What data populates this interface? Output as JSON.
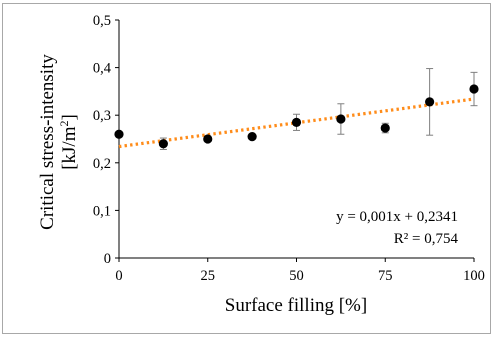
{
  "chart_data": {
    "type": "scatter",
    "xlabel": "Surface filling [%]",
    "ylabel_line1": "Critical stress-intensity",
    "ylabel_line2_prefix": "[kJ/m",
    "ylabel_line2_sup": "2",
    "ylabel_line2_suffix": "]",
    "xlim": [
      0,
      100
    ],
    "ylim": [
      0,
      0.5
    ],
    "x_ticks": [
      0,
      25,
      50,
      75,
      100
    ],
    "x_tick_labels": [
      "0",
      "25",
      "50",
      "75",
      "100"
    ],
    "y_ticks": [
      0,
      0.1,
      0.2,
      0.3,
      0.4,
      0.5
    ],
    "y_tick_labels": [
      "0",
      "0,1",
      "0,2",
      "0,3",
      "0,4",
      "0,5"
    ],
    "grid": false,
    "series": [
      {
        "marker_color": "#000000",
        "points": [
          {
            "x": 0,
            "y": 0.26,
            "err": 0
          },
          {
            "x": 12.5,
            "y": 0.24,
            "err": 0.012
          },
          {
            "x": 25,
            "y": 0.25,
            "err": 0
          },
          {
            "x": 37.5,
            "y": 0.255,
            "err": 0
          },
          {
            "x": 50,
            "y": 0.285,
            "err": 0.017
          },
          {
            "x": 62.5,
            "y": 0.292,
            "err": 0.032
          },
          {
            "x": 75,
            "y": 0.273,
            "err": 0.01
          },
          {
            "x": 87.5,
            "y": 0.328,
            "err": 0.07
          },
          {
            "x": 100,
            "y": 0.355,
            "err": 0.035
          }
        ]
      }
    ],
    "trendline": {
      "slope": 0.001,
      "intercept": 0.2341,
      "color": "#ff8c1a",
      "style": "dotted"
    },
    "annotations": {
      "equation": "y = 0,001x + 0,2341",
      "r_squared": "R² = 0,754"
    }
  }
}
